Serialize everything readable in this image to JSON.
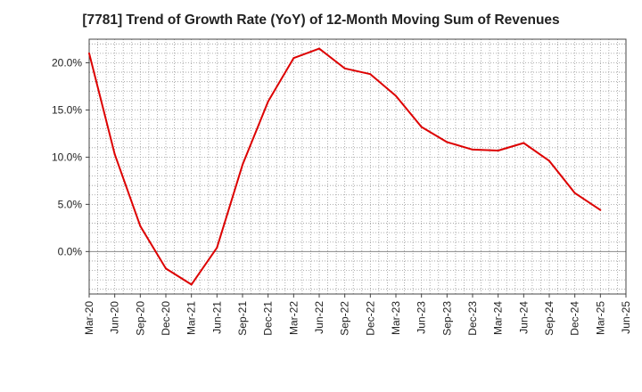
{
  "chart_data": {
    "type": "line",
    "title": "[7781]  Trend of Growth Rate (YoY) of 12-Month Moving Sum of Revenues",
    "xlabel": "",
    "ylabel": "",
    "x_tick_labels": [
      "Mar-20",
      "Jun-20",
      "Sep-20",
      "Dec-20",
      "Mar-21",
      "Jun-21",
      "Sep-21",
      "Dec-21",
      "Mar-22",
      "Jun-22",
      "Sep-22",
      "Dec-22",
      "Mar-23",
      "Jun-23",
      "Sep-23",
      "Dec-23",
      "Mar-24",
      "Jun-24",
      "Sep-24",
      "Dec-24",
      "Mar-25",
      "Jun-25"
    ],
    "y_ticks": [
      0,
      5,
      10,
      15,
      20
    ],
    "y_tick_labels": [
      "0.0%",
      "5.0%",
      "10.0%",
      "15.0%",
      "20.0%"
    ],
    "ylim": [
      -4.5,
      22.5
    ],
    "grid": true,
    "series": [
      {
        "color": "#dd0000",
        "x": [
          "Mar-20",
          "Jun-20",
          "Sep-20",
          "Dec-20",
          "Mar-21",
          "Jun-21",
          "Sep-21",
          "Dec-21",
          "Mar-22",
          "Jun-22",
          "Sep-22",
          "Dec-22",
          "Mar-23",
          "Jun-23",
          "Sep-23",
          "Dec-23",
          "Mar-24",
          "Jun-24",
          "Sep-24",
          "Dec-24",
          "Mar-25"
        ],
        "values": [
          21.0,
          10.3,
          2.7,
          -1.8,
          -3.5,
          0.4,
          9.2,
          15.9,
          20.5,
          21.5,
          19.4,
          18.8,
          16.5,
          13.2,
          11.6,
          10.8,
          10.7,
          11.5,
          9.6,
          6.2,
          4.4
        ]
      }
    ]
  }
}
